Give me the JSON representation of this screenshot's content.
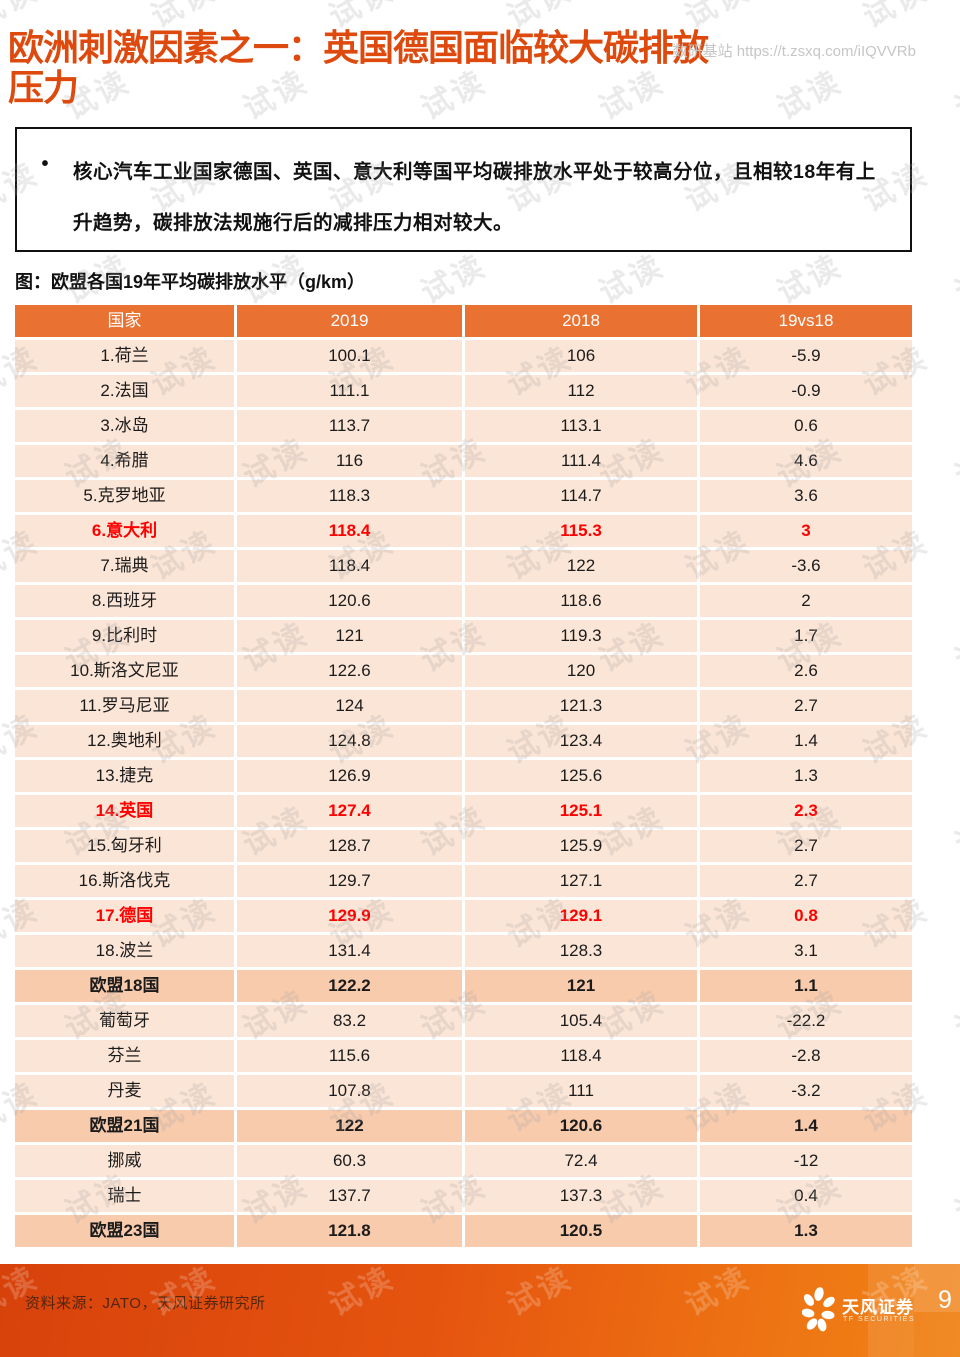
{
  "page": {
    "title": "欧洲刺激因素之一：英国德国面临较大碳排放压力",
    "header_link": "数研基站 https://t.zsxq.com/iIQVVRb",
    "watermark": "试读"
  },
  "summary_box": {
    "bullet": "•",
    "text": "核心汽车工业国家德国、英国、意大利等国平均碳排放水平处于较高分位，且相较18年有上升趋势，碳排放法规施行后的减排压力相对较大。"
  },
  "colors": {
    "title_accent": "#DE4A0D",
    "table_header_bg": "#E97132",
    "row_bg": "#FBE5D6",
    "summary_row_bg": "#F8CBAD",
    "highlight_text": "#FF0000",
    "footer_gradient_left": "#D7420B",
    "footer_gradient_right": "#F08316"
  },
  "chart_data": {
    "type": "table",
    "title": "图：欧盟各国19年平均碳排放水平（g/km）",
    "unit": "g/km",
    "columns": [
      "国家",
      "2019",
      "2018",
      "19vs18"
    ],
    "rows": [
      {
        "country": "1.荷兰",
        "y2019": "100.1",
        "y2018": "106",
        "diff": "-5.9",
        "style": "normal"
      },
      {
        "country": "2.法国",
        "y2019": "111.1",
        "y2018": "112",
        "diff": "-0.9",
        "style": "normal"
      },
      {
        "country": "3.冰岛",
        "y2019": "113.7",
        "y2018": "113.1",
        "diff": "0.6",
        "style": "normal"
      },
      {
        "country": "4.希腊",
        "y2019": "116",
        "y2018": "111.4",
        "diff": "4.6",
        "style": "normal"
      },
      {
        "country": "5.克罗地亚",
        "y2019": "118.3",
        "y2018": "114.7",
        "diff": "3.6",
        "style": "normal"
      },
      {
        "country": "6.意大利",
        "y2019": "118.4",
        "y2018": "115.3",
        "diff": "3",
        "style": "red"
      },
      {
        "country": "7.瑞典",
        "y2019": "118.4",
        "y2018": "122",
        "diff": "-3.6",
        "style": "normal"
      },
      {
        "country": "8.西班牙",
        "y2019": "120.6",
        "y2018": "118.6",
        "diff": "2",
        "style": "normal"
      },
      {
        "country": "9.比利时",
        "y2019": "121",
        "y2018": "119.3",
        "diff": "1.7",
        "style": "normal"
      },
      {
        "country": "10.斯洛文尼亚",
        "y2019": "122.6",
        "y2018": "120",
        "diff": "2.6",
        "style": "normal"
      },
      {
        "country": "11.罗马尼亚",
        "y2019": "124",
        "y2018": "121.3",
        "diff": "2.7",
        "style": "normal"
      },
      {
        "country": "12.奥地利",
        "y2019": "124.8",
        "y2018": "123.4",
        "diff": "1.4",
        "style": "normal"
      },
      {
        "country": "13.捷克",
        "y2019": "126.9",
        "y2018": "125.6",
        "diff": "1.3",
        "style": "normal"
      },
      {
        "country": "14.英国",
        "y2019": "127.4",
        "y2018": "125.1",
        "diff": "2.3",
        "style": "red"
      },
      {
        "country": "15.匈牙利",
        "y2019": "128.7",
        "y2018": "125.9",
        "diff": "2.7",
        "style": "normal"
      },
      {
        "country": "16.斯洛伐克",
        "y2019": "129.7",
        "y2018": "127.1",
        "diff": "2.7",
        "style": "normal"
      },
      {
        "country": "17.德国",
        "y2019": "129.9",
        "y2018": "129.1",
        "diff": "0.8",
        "style": "red"
      },
      {
        "country": "18.波兰",
        "y2019": "131.4",
        "y2018": "128.3",
        "diff": "3.1",
        "style": "normal"
      },
      {
        "country": "欧盟18国",
        "y2019": "122.2",
        "y2018": "121",
        "diff": "1.1",
        "style": "summary"
      },
      {
        "country": "葡萄牙",
        "y2019": "83.2",
        "y2018": "105.4",
        "diff": "-22.2",
        "style": "normal"
      },
      {
        "country": "芬兰",
        "y2019": "115.6",
        "y2018": "118.4",
        "diff": "-2.8",
        "style": "normal"
      },
      {
        "country": "丹麦",
        "y2019": "107.8",
        "y2018": "111",
        "diff": "-3.2",
        "style": "normal"
      },
      {
        "country": "欧盟21国",
        "y2019": "122",
        "y2018": "120.6",
        "diff": "1.4",
        "style": "summary"
      },
      {
        "country": "挪威",
        "y2019": "60.3",
        "y2018": "72.4",
        "diff": "-12",
        "style": "normal"
      },
      {
        "country": "瑞士",
        "y2019": "137.7",
        "y2018": "137.3",
        "diff": "0.4",
        "style": "normal"
      },
      {
        "country": "欧盟23国",
        "y2019": "121.8",
        "y2018": "120.5",
        "diff": "1.3",
        "style": "summary"
      }
    ]
  },
  "footer": {
    "source": "资料来源：JATO，天风证券研究所",
    "brand": "天风证券",
    "brand_sub": "TF SECURITIES",
    "page_number": "9"
  }
}
